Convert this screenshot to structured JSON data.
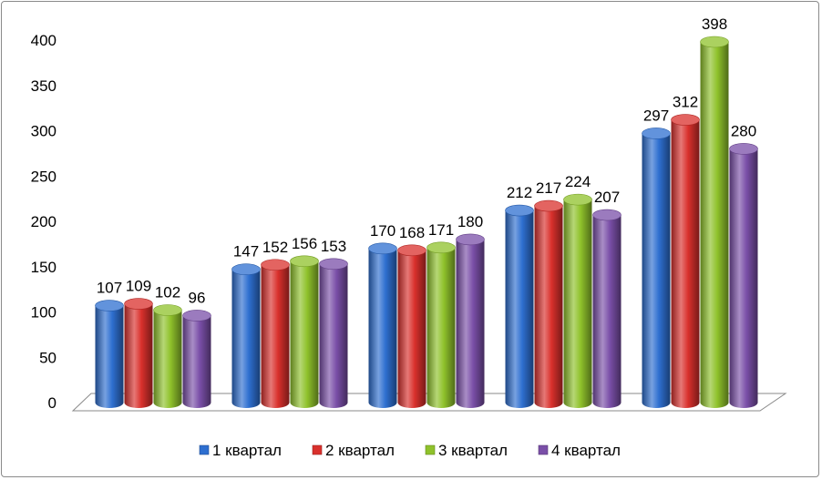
{
  "chart_data": {
    "type": "bar",
    "style": "3d-cylinder",
    "categories": [
      "",
      "",
      "",
      "",
      ""
    ],
    "series": [
      {
        "name": "1 квартал",
        "color": "#2e6fd0",
        "values": [
          107,
          147,
          170,
          212,
          297
        ]
      },
      {
        "name": "2 квартал",
        "color": "#d9302c",
        "values": [
          109,
          152,
          168,
          217,
          312
        ]
      },
      {
        "name": "3 квартал",
        "color": "#8fc22b",
        "values": [
          102,
          156,
          171,
          224,
          398
        ]
      },
      {
        "name": "4 квартал",
        "color": "#7a4fa8",
        "values": [
          96,
          153,
          180,
          207,
          280
        ]
      }
    ],
    "ylim": [
      0,
      400
    ],
    "yticks": [
      "0",
      "50",
      "100",
      "150",
      "200",
      "250",
      "300",
      "350",
      "400"
    ],
    "grid": false,
    "legend_position": "bottom",
    "title": "",
    "xlabel": "",
    "ylabel": ""
  }
}
